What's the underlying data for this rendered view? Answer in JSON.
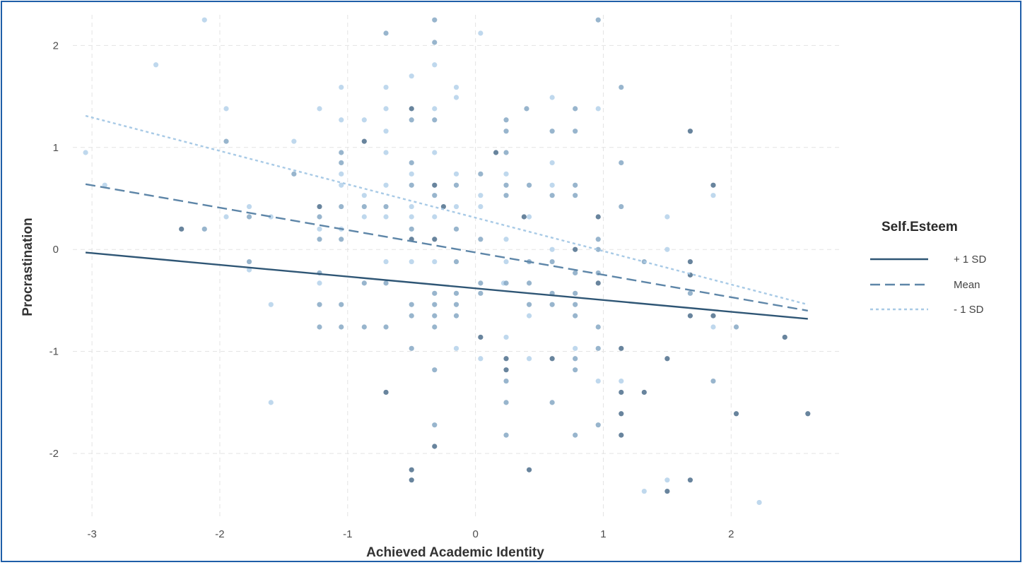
{
  "chart_data": {
    "type": "scatter",
    "title": "",
    "xlabel": "Achieved Academic Identity",
    "ylabel": "Procrastination",
    "xlim": [
      -3.15,
      2.85
    ],
    "ylim": [
      -2.65,
      2.3
    ],
    "xticks": [
      -3,
      -2,
      -1,
      0,
      1,
      2
    ],
    "yticks": [
      -2,
      -1,
      0,
      1,
      2
    ],
    "xtick_labels": [
      "-3",
      "-2",
      "-1",
      "0",
      "1",
      "2"
    ],
    "ytick_labels": [
      "-2",
      "-1",
      "0",
      "1",
      "2"
    ],
    "grid": true,
    "legend": {
      "title": "Self.Esteem",
      "position": "right",
      "entries": [
        "+ 1 SD",
        "Mean",
        "- 1 SD"
      ]
    },
    "colors": {
      "plus1sd": "#2f5675",
      "mean": "#5e86a8",
      "minus1sd": "#a8cae6",
      "point_dark": "#4d6f8c",
      "point_mid": "#86a8c4",
      "point_light": "#b4d1ea",
      "frame": "#1f5ea8"
    },
    "series": [
      {
        "name": "+ 1 SD",
        "style": "solid",
        "x": [
          -3.05,
          2.6
        ],
        "y": [
          -0.03,
          -0.68
        ]
      },
      {
        "name": "Mean",
        "style": "dashed",
        "x": [
          -3.05,
          2.6
        ],
        "y": [
          0.64,
          -0.6
        ]
      },
      {
        "name": "- 1 SD",
        "style": "dotted",
        "x": [
          -3.05,
          2.6
        ],
        "y": [
          1.31,
          -0.54
        ]
      }
    ],
    "points": [
      {
        "x": -3.05,
        "y": 0.95,
        "g": "l"
      },
      {
        "x": -2.9,
        "y": 0.63,
        "g": "l"
      },
      {
        "x": -2.5,
        "y": 1.81,
        "g": "l"
      },
      {
        "x": -2.3,
        "y": 0.2,
        "g": "d"
      },
      {
        "x": -2.12,
        "y": 2.25,
        "g": "l"
      },
      {
        "x": -2.12,
        "y": 0.2,
        "g": "m"
      },
      {
        "x": -1.95,
        "y": 1.38,
        "g": "l"
      },
      {
        "x": -1.95,
        "y": 1.06,
        "g": "m"
      },
      {
        "x": -1.95,
        "y": 0.32,
        "g": "l"
      },
      {
        "x": -1.77,
        "y": 0.42,
        "g": "l"
      },
      {
        "x": -1.77,
        "y": 0.32,
        "g": "m"
      },
      {
        "x": -1.77,
        "y": -0.12,
        "g": "m"
      },
      {
        "x": -1.77,
        "y": -0.2,
        "g": "l"
      },
      {
        "x": -1.6,
        "y": 0.32,
        "g": "l"
      },
      {
        "x": -1.6,
        "y": -0.54,
        "g": "l"
      },
      {
        "x": -1.6,
        "y": -1.5,
        "g": "l"
      },
      {
        "x": -1.42,
        "y": 1.06,
        "g": "l"
      },
      {
        "x": -1.42,
        "y": 0.74,
        "g": "m"
      },
      {
        "x": -1.22,
        "y": 1.38,
        "g": "l"
      },
      {
        "x": -1.22,
        "y": 0.42,
        "g": "d"
      },
      {
        "x": -1.22,
        "y": 0.32,
        "g": "m"
      },
      {
        "x": -1.22,
        "y": 0.2,
        "g": "l"
      },
      {
        "x": -1.22,
        "y": 0.1,
        "g": "m"
      },
      {
        "x": -1.22,
        "y": -0.23,
        "g": "m"
      },
      {
        "x": -1.22,
        "y": -0.33,
        "g": "l"
      },
      {
        "x": -1.22,
        "y": -0.54,
        "g": "m"
      },
      {
        "x": -1.22,
        "y": -0.76,
        "g": "m"
      },
      {
        "x": -1.05,
        "y": 1.59,
        "g": "l"
      },
      {
        "x": -1.05,
        "y": 1.27,
        "g": "l"
      },
      {
        "x": -1.05,
        "y": 0.95,
        "g": "m"
      },
      {
        "x": -1.05,
        "y": 0.85,
        "g": "m"
      },
      {
        "x": -1.05,
        "y": 0.74,
        "g": "l"
      },
      {
        "x": -1.05,
        "y": 0.63,
        "g": "l"
      },
      {
        "x": -1.05,
        "y": 0.42,
        "g": "m"
      },
      {
        "x": -1.05,
        "y": 0.2,
        "g": "l"
      },
      {
        "x": -1.05,
        "y": 0.1,
        "g": "m"
      },
      {
        "x": -1.05,
        "y": -0.54,
        "g": "m"
      },
      {
        "x": -1.05,
        "y": -0.76,
        "g": "m"
      },
      {
        "x": -0.87,
        "y": 1.27,
        "g": "l"
      },
      {
        "x": -0.87,
        "y": 1.06,
        "g": "d"
      },
      {
        "x": -0.87,
        "y": 0.53,
        "g": "l"
      },
      {
        "x": -0.87,
        "y": 0.42,
        "g": "m"
      },
      {
        "x": -0.87,
        "y": 0.32,
        "g": "l"
      },
      {
        "x": -0.87,
        "y": -0.33,
        "g": "m"
      },
      {
        "x": -0.87,
        "y": -0.76,
        "g": "m"
      },
      {
        "x": -0.7,
        "y": 2.12,
        "g": "m"
      },
      {
        "x": -0.7,
        "y": 1.59,
        "g": "l"
      },
      {
        "x": -0.7,
        "y": 1.38,
        "g": "l"
      },
      {
        "x": -0.7,
        "y": 1.16,
        "g": "l"
      },
      {
        "x": -0.7,
        "y": 0.95,
        "g": "l"
      },
      {
        "x": -0.7,
        "y": 0.63,
        "g": "l"
      },
      {
        "x": -0.7,
        "y": 0.42,
        "g": "m"
      },
      {
        "x": -0.7,
        "y": 0.32,
        "g": "l"
      },
      {
        "x": -0.7,
        "y": -0.12,
        "g": "l"
      },
      {
        "x": -0.7,
        "y": -0.33,
        "g": "m"
      },
      {
        "x": -0.7,
        "y": -0.76,
        "g": "m"
      },
      {
        "x": -0.7,
        "y": -1.4,
        "g": "d"
      },
      {
        "x": -0.5,
        "y": 1.7,
        "g": "l"
      },
      {
        "x": -0.5,
        "y": 1.38,
        "g": "d"
      },
      {
        "x": -0.5,
        "y": 1.27,
        "g": "m"
      },
      {
        "x": -0.5,
        "y": 0.85,
        "g": "m"
      },
      {
        "x": -0.5,
        "y": 0.74,
        "g": "l"
      },
      {
        "x": -0.5,
        "y": 0.63,
        "g": "m"
      },
      {
        "x": -0.5,
        "y": 0.42,
        "g": "l"
      },
      {
        "x": -0.5,
        "y": 0.32,
        "g": "l"
      },
      {
        "x": -0.5,
        "y": 0.2,
        "g": "m"
      },
      {
        "x": -0.5,
        "y": 0.1,
        "g": "d"
      },
      {
        "x": -0.5,
        "y": -0.12,
        "g": "l"
      },
      {
        "x": -0.5,
        "y": -0.54,
        "g": "m"
      },
      {
        "x": -0.5,
        "y": -0.65,
        "g": "m"
      },
      {
        "x": -0.5,
        "y": -0.97,
        "g": "m"
      },
      {
        "x": -0.5,
        "y": -2.16,
        "g": "d"
      },
      {
        "x": -0.5,
        "y": -2.26,
        "g": "d"
      },
      {
        "x": -0.32,
        "y": 2.25,
        "g": "m"
      },
      {
        "x": -0.32,
        "y": 2.03,
        "g": "m"
      },
      {
        "x": -0.32,
        "y": 1.81,
        "g": "l"
      },
      {
        "x": -0.32,
        "y": 1.38,
        "g": "l"
      },
      {
        "x": -0.32,
        "y": 1.27,
        "g": "m"
      },
      {
        "x": -0.32,
        "y": 0.95,
        "g": "l"
      },
      {
        "x": -0.32,
        "y": 0.63,
        "g": "d"
      },
      {
        "x": -0.32,
        "y": 0.53,
        "g": "m"
      },
      {
        "x": -0.32,
        "y": 0.32,
        "g": "l"
      },
      {
        "x": -0.32,
        "y": 0.1,
        "g": "d"
      },
      {
        "x": -0.32,
        "y": -0.12,
        "g": "l"
      },
      {
        "x": -0.32,
        "y": -0.43,
        "g": "m"
      },
      {
        "x": -0.32,
        "y": -0.54,
        "g": "m"
      },
      {
        "x": -0.32,
        "y": -0.65,
        "g": "m"
      },
      {
        "x": -0.32,
        "y": -0.76,
        "g": "m"
      },
      {
        "x": -0.32,
        "y": -1.18,
        "g": "m"
      },
      {
        "x": -0.32,
        "y": -1.72,
        "g": "m"
      },
      {
        "x": -0.32,
        "y": -1.93,
        "g": "d"
      },
      {
        "x": -0.25,
        "y": 0.42,
        "g": "d"
      },
      {
        "x": -0.15,
        "y": 1.59,
        "g": "l"
      },
      {
        "x": -0.15,
        "y": 1.49,
        "g": "l"
      },
      {
        "x": -0.15,
        "y": 0.74,
        "g": "l"
      },
      {
        "x": -0.15,
        "y": 0.63,
        "g": "m"
      },
      {
        "x": -0.15,
        "y": 0.42,
        "g": "l"
      },
      {
        "x": -0.15,
        "y": 0.2,
        "g": "m"
      },
      {
        "x": -0.15,
        "y": -0.12,
        "g": "m"
      },
      {
        "x": -0.15,
        "y": -0.43,
        "g": "m"
      },
      {
        "x": -0.15,
        "y": -0.54,
        "g": "m"
      },
      {
        "x": -0.15,
        "y": -0.65,
        "g": "m"
      },
      {
        "x": -0.15,
        "y": -0.97,
        "g": "l"
      },
      {
        "x": 0.04,
        "y": 2.12,
        "g": "l"
      },
      {
        "x": 0.04,
        "y": 0.74,
        "g": "m"
      },
      {
        "x": 0.04,
        "y": 0.53,
        "g": "l"
      },
      {
        "x": 0.04,
        "y": 0.42,
        "g": "l"
      },
      {
        "x": 0.04,
        "y": 0.1,
        "g": "m"
      },
      {
        "x": 0.04,
        "y": -0.33,
        "g": "m"
      },
      {
        "x": 0.04,
        "y": -0.43,
        "g": "m"
      },
      {
        "x": 0.04,
        "y": -0.86,
        "g": "d"
      },
      {
        "x": 0.04,
        "y": -1.07,
        "g": "l"
      },
      {
        "x": 0.16,
        "y": 0.95,
        "g": "d"
      },
      {
        "x": 0.22,
        "y": -0.33,
        "g": "l"
      },
      {
        "x": 0.24,
        "y": 1.27,
        "g": "m"
      },
      {
        "x": 0.24,
        "y": 1.16,
        "g": "m"
      },
      {
        "x": 0.24,
        "y": 0.95,
        "g": "m"
      },
      {
        "x": 0.24,
        "y": 0.74,
        "g": "l"
      },
      {
        "x": 0.24,
        "y": 0.63,
        "g": "m"
      },
      {
        "x": 0.24,
        "y": 0.53,
        "g": "m"
      },
      {
        "x": 0.24,
        "y": 0.1,
        "g": "l"
      },
      {
        "x": 0.24,
        "y": -0.12,
        "g": "l"
      },
      {
        "x": 0.24,
        "y": -0.33,
        "g": "m"
      },
      {
        "x": 0.24,
        "y": -0.86,
        "g": "l"
      },
      {
        "x": 0.24,
        "y": -1.07,
        "g": "d"
      },
      {
        "x": 0.24,
        "y": -1.18,
        "g": "d"
      },
      {
        "x": 0.24,
        "y": -1.29,
        "g": "m"
      },
      {
        "x": 0.24,
        "y": -1.5,
        "g": "m"
      },
      {
        "x": 0.24,
        "y": -1.82,
        "g": "m"
      },
      {
        "x": 0.4,
        "y": 1.38,
        "g": "m"
      },
      {
        "x": 0.38,
        "y": 0.32,
        "g": "d"
      },
      {
        "x": 0.42,
        "y": 0.63,
        "g": "m"
      },
      {
        "x": 0.42,
        "y": 0.32,
        "g": "l"
      },
      {
        "x": 0.42,
        "y": -0.12,
        "g": "m"
      },
      {
        "x": 0.42,
        "y": -0.33,
        "g": "m"
      },
      {
        "x": 0.42,
        "y": -0.54,
        "g": "m"
      },
      {
        "x": 0.42,
        "y": -0.65,
        "g": "l"
      },
      {
        "x": 0.42,
        "y": -1.07,
        "g": "l"
      },
      {
        "x": 0.42,
        "y": -2.16,
        "g": "d"
      },
      {
        "x": 0.6,
        "y": 1.49,
        "g": "l"
      },
      {
        "x": 0.6,
        "y": 1.16,
        "g": "m"
      },
      {
        "x": 0.6,
        "y": 0.85,
        "g": "l"
      },
      {
        "x": 0.6,
        "y": 0.63,
        "g": "l"
      },
      {
        "x": 0.6,
        "y": 0.53,
        "g": "m"
      },
      {
        "x": 0.6,
        "y": 0.0,
        "g": "l"
      },
      {
        "x": 0.6,
        "y": -0.12,
        "g": "m"
      },
      {
        "x": 0.6,
        "y": -0.43,
        "g": "m"
      },
      {
        "x": 0.6,
        "y": -0.54,
        "g": "m"
      },
      {
        "x": 0.6,
        "y": -1.07,
        "g": "d"
      },
      {
        "x": 0.6,
        "y": -1.5,
        "g": "m"
      },
      {
        "x": 0.78,
        "y": 1.38,
        "g": "m"
      },
      {
        "x": 0.78,
        "y": 1.16,
        "g": "m"
      },
      {
        "x": 0.78,
        "y": 0.63,
        "g": "m"
      },
      {
        "x": 0.78,
        "y": 0.53,
        "g": "m"
      },
      {
        "x": 0.78,
        "y": 0.0,
        "g": "d"
      },
      {
        "x": 0.78,
        "y": -0.23,
        "g": "m"
      },
      {
        "x": 0.78,
        "y": -0.43,
        "g": "m"
      },
      {
        "x": 0.78,
        "y": -0.54,
        "g": "m"
      },
      {
        "x": 0.78,
        "y": -0.65,
        "g": "m"
      },
      {
        "x": 0.78,
        "y": -0.97,
        "g": "l"
      },
      {
        "x": 0.78,
        "y": -1.07,
        "g": "m"
      },
      {
        "x": 0.78,
        "y": -1.18,
        "g": "m"
      },
      {
        "x": 0.78,
        "y": -1.82,
        "g": "m"
      },
      {
        "x": 0.96,
        "y": 2.25,
        "g": "m"
      },
      {
        "x": 0.96,
        "y": 1.38,
        "g": "l"
      },
      {
        "x": 0.96,
        "y": 0.32,
        "g": "d"
      },
      {
        "x": 0.96,
        "y": 0.1,
        "g": "m"
      },
      {
        "x": 0.96,
        "y": 0.0,
        "g": "m"
      },
      {
        "x": 0.96,
        "y": -0.23,
        "g": "m"
      },
      {
        "x": 0.96,
        "y": -0.33,
        "g": "d"
      },
      {
        "x": 0.96,
        "y": -0.76,
        "g": "m"
      },
      {
        "x": 0.96,
        "y": -0.97,
        "g": "m"
      },
      {
        "x": 0.96,
        "y": -1.29,
        "g": "l"
      },
      {
        "x": 0.96,
        "y": -1.72,
        "g": "m"
      },
      {
        "x": 1.14,
        "y": 1.59,
        "g": "m"
      },
      {
        "x": 1.14,
        "y": 0.85,
        "g": "m"
      },
      {
        "x": 1.14,
        "y": 0.42,
        "g": "m"
      },
      {
        "x": 1.14,
        "y": -0.97,
        "g": "d"
      },
      {
        "x": 1.14,
        "y": -1.29,
        "g": "l"
      },
      {
        "x": 1.14,
        "y": -1.4,
        "g": "d"
      },
      {
        "x": 1.14,
        "y": -1.61,
        "g": "d"
      },
      {
        "x": 1.14,
        "y": -1.82,
        "g": "d"
      },
      {
        "x": 1.32,
        "y": -0.12,
        "g": "m"
      },
      {
        "x": 1.32,
        "y": -1.4,
        "g": "d"
      },
      {
        "x": 1.32,
        "y": -2.37,
        "g": "l"
      },
      {
        "x": 1.5,
        "y": 0.32,
        "g": "l"
      },
      {
        "x": 1.5,
        "y": 0.0,
        "g": "l"
      },
      {
        "x": 1.5,
        "y": -1.07,
        "g": "d"
      },
      {
        "x": 1.5,
        "y": -2.26,
        "g": "l"
      },
      {
        "x": 1.5,
        "y": -2.37,
        "g": "d"
      },
      {
        "x": 1.68,
        "y": 1.16,
        "g": "d"
      },
      {
        "x": 1.68,
        "y": -0.12,
        "g": "d"
      },
      {
        "x": 1.68,
        "y": -0.25,
        "g": "d"
      },
      {
        "x": 1.68,
        "y": -0.43,
        "g": "m"
      },
      {
        "x": 1.68,
        "y": -0.65,
        "g": "d"
      },
      {
        "x": 1.68,
        "y": -2.26,
        "g": "d"
      },
      {
        "x": 1.86,
        "y": 0.63,
        "g": "d"
      },
      {
        "x": 1.86,
        "y": 0.53,
        "g": "l"
      },
      {
        "x": 1.86,
        "y": -0.65,
        "g": "d"
      },
      {
        "x": 1.86,
        "y": -0.76,
        "g": "l"
      },
      {
        "x": 1.86,
        "y": -1.29,
        "g": "m"
      },
      {
        "x": 2.04,
        "y": -0.76,
        "g": "m"
      },
      {
        "x": 2.04,
        "y": -1.61,
        "g": "d"
      },
      {
        "x": 2.22,
        "y": -2.48,
        "g": "l"
      },
      {
        "x": 2.42,
        "y": -0.86,
        "g": "d"
      },
      {
        "x": 2.6,
        "y": -1.61,
        "g": "d"
      }
    ]
  }
}
